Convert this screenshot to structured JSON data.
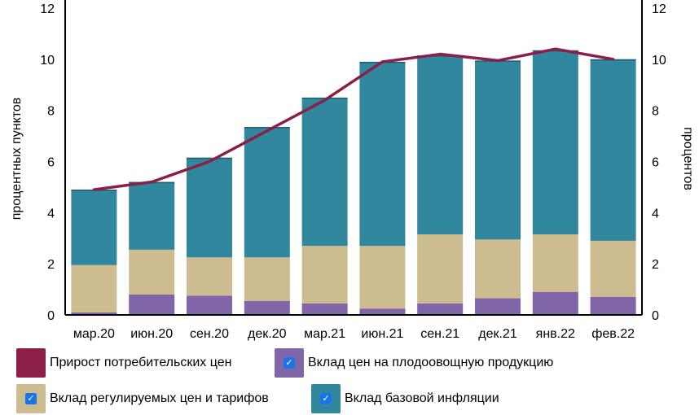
{
  "chart_data": {
    "type": "bar",
    "stacked": true,
    "categories": [
      "мар.20",
      "июн.20",
      "сен.20",
      "дек.20",
      "мар.21",
      "июн.21",
      "сен.21",
      "дек.21",
      "янв.22",
      "фев.22"
    ],
    "series": [
      {
        "name": "Вклад цен на плодоовощную продукцию",
        "kind": "bar",
        "color": "#8065a8",
        "values": [
          0.1,
          0.8,
          0.75,
          0.55,
          0.45,
          0.25,
          0.45,
          0.65,
          0.9,
          0.7
        ]
      },
      {
        "name": "Вклад регулируемых цен и тарифов",
        "kind": "bar",
        "color": "#ccbc8f",
        "values": [
          1.85,
          1.75,
          1.5,
          1.7,
          2.25,
          2.45,
          2.7,
          2.3,
          2.25,
          2.2
        ]
      },
      {
        "name": "Вклад базовой инфляции",
        "kind": "bar",
        "color": "#31879d",
        "values": [
          2.95,
          2.65,
          3.9,
          5.1,
          5.8,
          7.2,
          7.0,
          7.0,
          7.2,
          7.1
        ]
      },
      {
        "name": "Прирост потребительских цен",
        "kind": "line",
        "color": "#8c1f48",
        "values": [
          4.9,
          5.2,
          6.0,
          7.2,
          8.4,
          9.9,
          10.2,
          9.95,
          10.4,
          10.0
        ]
      }
    ],
    "ylabel": "процентных пунктов",
    "y2label": "процентов",
    "ylim": [
      0,
      12
    ],
    "y2lim": [
      0,
      12
    ],
    "yticks": [
      "0",
      "2",
      "4",
      "6",
      "8",
      "10",
      "12"
    ],
    "grid": false,
    "legend_position": "bottom"
  },
  "legend": [
    {
      "label": "Прирост потребительских цен",
      "color": "#8c1f48",
      "checked": false
    },
    {
      "label": "Вклад цен на плодоовощную продукцию",
      "color": "#8065a8",
      "checked": true
    },
    {
      "label": "Вклад регулируемых цен и тарифов",
      "color": "#ccbc8f",
      "checked": true
    },
    {
      "label": "Вклад базовой инфляции",
      "color": "#31879d",
      "checked": true
    }
  ]
}
